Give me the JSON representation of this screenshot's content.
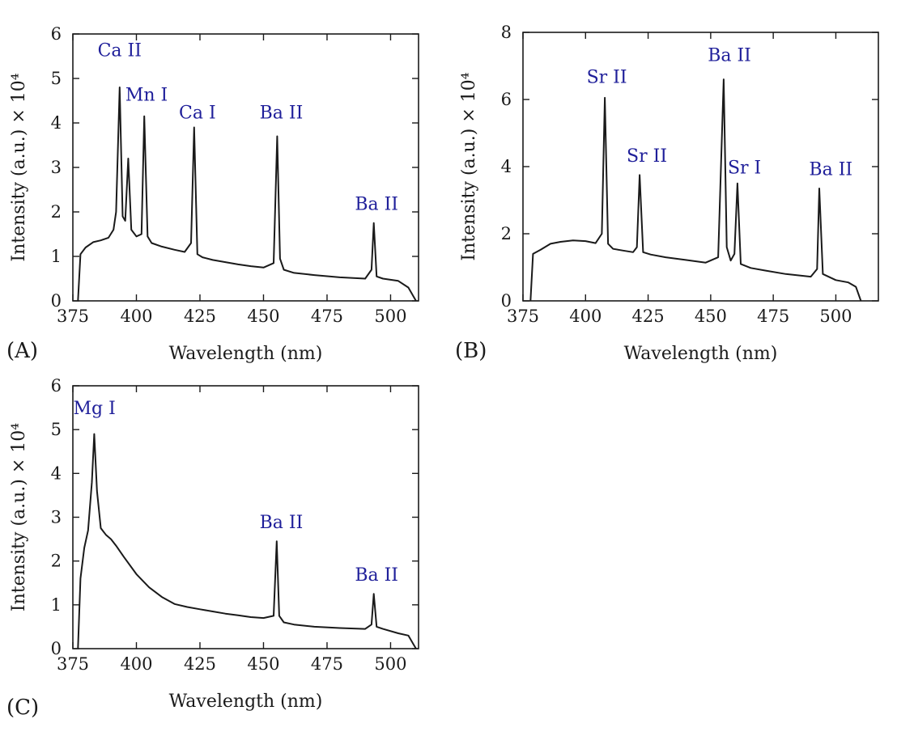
{
  "theme": {
    "label_color": "#1f1f9a",
    "line_color": "#1a1a1a"
  },
  "chart_data": [
    {
      "id": "A",
      "type": "line",
      "panel_label": "(A)",
      "xlabel": "Wavelength (nm)",
      "ylabel": "Intensity (a.u.) × 10⁴",
      "xlim": [
        375,
        511
      ],
      "ylim": [
        0,
        6
      ],
      "xticks": [
        375,
        400,
        425,
        450,
        475,
        500
      ],
      "yticks": [
        0,
        1,
        2,
        3,
        4,
        5,
        6
      ],
      "series": [
        {
          "x": [
            377,
            378,
            380,
            383,
            386,
            389,
            391,
            392,
            393.4,
            394.6,
            395.6,
            396.8,
            398,
            400,
            402,
            403.1,
            404.4,
            406,
            410,
            415,
            419,
            421.5,
            422.7,
            424,
            426,
            430,
            435,
            440,
            445,
            450,
            454,
            455.4,
            456.5,
            458,
            462,
            470,
            480,
            490,
            492.5,
            493.4,
            494.5,
            497,
            503,
            507,
            509,
            510
          ],
          "y": [
            0,
            1.05,
            1.2,
            1.32,
            1.36,
            1.42,
            1.6,
            2.0,
            4.8,
            1.9,
            1.8,
            3.2,
            1.6,
            1.45,
            1.5,
            4.15,
            1.45,
            1.3,
            1.22,
            1.15,
            1.1,
            1.3,
            3.9,
            1.05,
            0.98,
            0.92,
            0.87,
            0.82,
            0.78,
            0.75,
            0.85,
            3.7,
            0.95,
            0.7,
            0.63,
            0.58,
            0.53,
            0.5,
            0.7,
            1.75,
            0.55,
            0.5,
            0.45,
            0.3,
            0.1,
            0
          ]
        }
      ],
      "annotations": [
        {
          "text": "Ca II",
          "x": 393.4,
          "y": 5.5
        },
        {
          "text": "Mn I",
          "x": 404,
          "y": 4.5
        },
        {
          "text": "Ca I",
          "x": 424,
          "y": 4.1
        },
        {
          "text": "Ba II",
          "x": 457,
          "y": 4.1
        },
        {
          "text": "Ba II",
          "x": 494.5,
          "y": 2.05
        }
      ]
    },
    {
      "id": "B",
      "type": "line",
      "panel_label": "(B)",
      "xlabel": "Wavelength (nm)",
      "ylabel": "Intensity (a.u.) × 10⁴",
      "xlim": [
        375,
        517
      ],
      "ylim": [
        0,
        8
      ],
      "xticks": [
        375,
        400,
        425,
        450,
        475,
        500
      ],
      "yticks": [
        0,
        2,
        4,
        6,
        8
      ],
      "series": [
        {
          "x": [
            378,
            379,
            382,
            386,
            390,
            395,
            400,
            404,
            406.5,
            407.7,
            409,
            411,
            415,
            419,
            420.5,
            421.6,
            423,
            426,
            432,
            440,
            448,
            453,
            455.2,
            456.4,
            458,
            459.5,
            460.7,
            462,
            466,
            472,
            480,
            490,
            492.5,
            493.4,
            494.8,
            500,
            505,
            508,
            510
          ],
          "y": [
            0,
            1.4,
            1.52,
            1.7,
            1.76,
            1.8,
            1.78,
            1.72,
            2.0,
            6.05,
            1.7,
            1.55,
            1.5,
            1.45,
            1.6,
            3.75,
            1.45,
            1.38,
            1.3,
            1.22,
            1.14,
            1.3,
            6.6,
            1.6,
            1.2,
            1.4,
            3.5,
            1.1,
            0.98,
            0.9,
            0.8,
            0.72,
            0.95,
            3.35,
            0.8,
            0.62,
            0.55,
            0.42,
            0
          ]
        }
      ],
      "annotations": [
        {
          "text": "Sr II",
          "x": 408.5,
          "y": 6.5
        },
        {
          "text": "Sr II",
          "x": 424.5,
          "y": 4.15
        },
        {
          "text": "Ba II",
          "x": 457.5,
          "y": 7.15
        },
        {
          "text": "Sr I",
          "x": 463.5,
          "y": 3.8
        },
        {
          "text": "Ba II",
          "x": 498,
          "y": 3.75
        }
      ]
    },
    {
      "id": "C",
      "type": "line",
      "panel_label": "(C)",
      "xlabel": "Wavelength (nm)",
      "ylabel": "Intensity (a.u.) × 10⁴",
      "xlim": [
        375,
        511
      ],
      "ylim": [
        0,
        6
      ],
      "xticks": [
        375,
        400,
        425,
        450,
        475,
        500
      ],
      "yticks": [
        0,
        1,
        2,
        3,
        4,
        5,
        6
      ],
      "series": [
        {
          "x": [
            377,
            378,
            379.5,
            381,
            382.5,
            383.4,
            384.5,
            386,
            388,
            390,
            392,
            395,
            400,
            405,
            410,
            415,
            420,
            425,
            430,
            435,
            440,
            445,
            450,
            454,
            455.2,
            456.2,
            458,
            462,
            470,
            480,
            490,
            492.5,
            493.4,
            494.5,
            497,
            503,
            507,
            509,
            510
          ],
          "y": [
            0,
            1.6,
            2.3,
            2.7,
            3.8,
            4.9,
            3.6,
            2.75,
            2.6,
            2.5,
            2.35,
            2.1,
            1.7,
            1.4,
            1.18,
            1.02,
            0.95,
            0.9,
            0.85,
            0.8,
            0.76,
            0.72,
            0.7,
            0.75,
            2.45,
            0.75,
            0.6,
            0.55,
            0.5,
            0.47,
            0.45,
            0.55,
            1.25,
            0.5,
            0.45,
            0.35,
            0.3,
            0.1,
            0
          ]
        }
      ],
      "annotations": [
        {
          "text": "Mg I",
          "x": 383.5,
          "y": 5.35
        },
        {
          "text": "Ba II",
          "x": 457,
          "y": 2.75
        },
        {
          "text": "Ba II",
          "x": 494.5,
          "y": 1.55
        }
      ]
    }
  ]
}
